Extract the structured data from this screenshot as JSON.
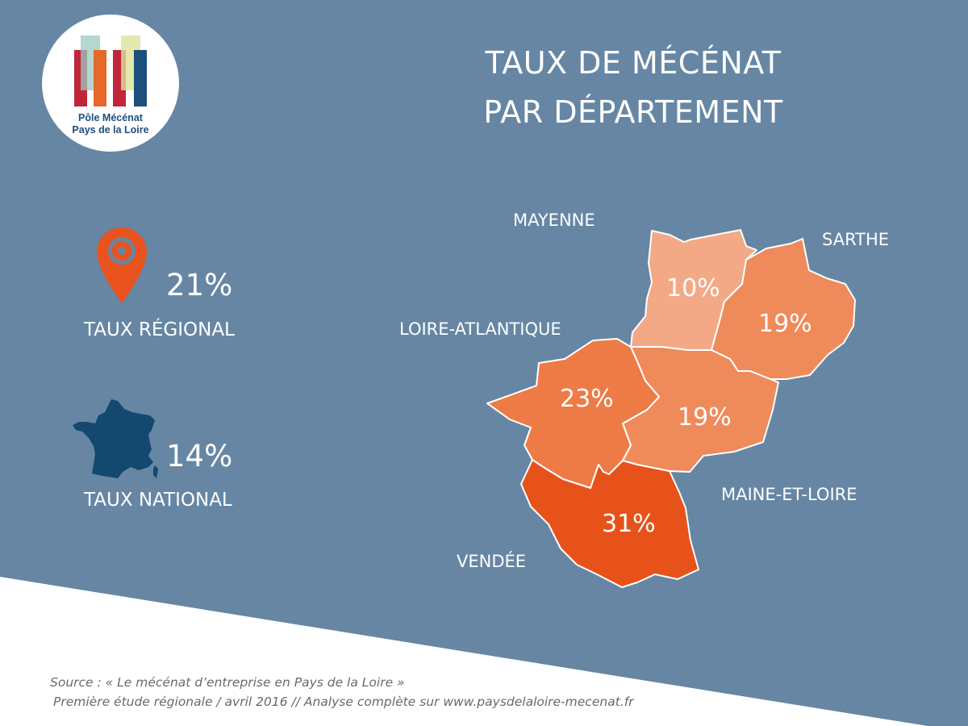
{
  "colors": {
    "background_panel": "#6686a4",
    "text_light": "#ffffff",
    "logo_text": "#1d4f7d",
    "source_text": "#6a6a6a",
    "pin": "#e9531e",
    "france": "#13486f",
    "scale_10": "#f3a986",
    "scale_19": "#ef8a5b",
    "scale_23": "#ee7b46",
    "scale_31": "#e6521a"
  },
  "logo": {
    "line1": "Pôle Mécénat",
    "line2": "Pays de la Loire"
  },
  "title": {
    "line1": "TAUX DE MÉCÉNAT",
    "line2": "PAR DÉPARTEMENT"
  },
  "stats": {
    "regional": {
      "value": "21%",
      "label": "TAUX RÉGIONAL",
      "icon": "map-pin-icon"
    },
    "national": {
      "value": "14%",
      "label": "TAUX NATIONAL",
      "icon": "france-map-icon"
    }
  },
  "map": {
    "departments": {
      "mayenne": {
        "name": "MAYENNE",
        "rate_text": "10%",
        "rate": 10
      },
      "sarthe": {
        "name": "SARTHE",
        "rate_text": "19%",
        "rate": 19
      },
      "loire_atlantique": {
        "name": "LOIRE-ATLANTIQUE",
        "rate_text": "23%",
        "rate": 23
      },
      "maine_et_loire": {
        "name": "MAINE-ET-LOIRE",
        "rate_text": "19%",
        "rate": 19
      },
      "vendee": {
        "name": "VENDÉE",
        "rate_text": "31%",
        "rate": 31
      }
    }
  },
  "source": {
    "line1": "Source : « Le mécénat d’entreprise en Pays de la Loire »",
    "line2": "Première étude régionale / avril 2016 // Analyse complète sur www.paysdelaloire-mecenat.fr"
  }
}
